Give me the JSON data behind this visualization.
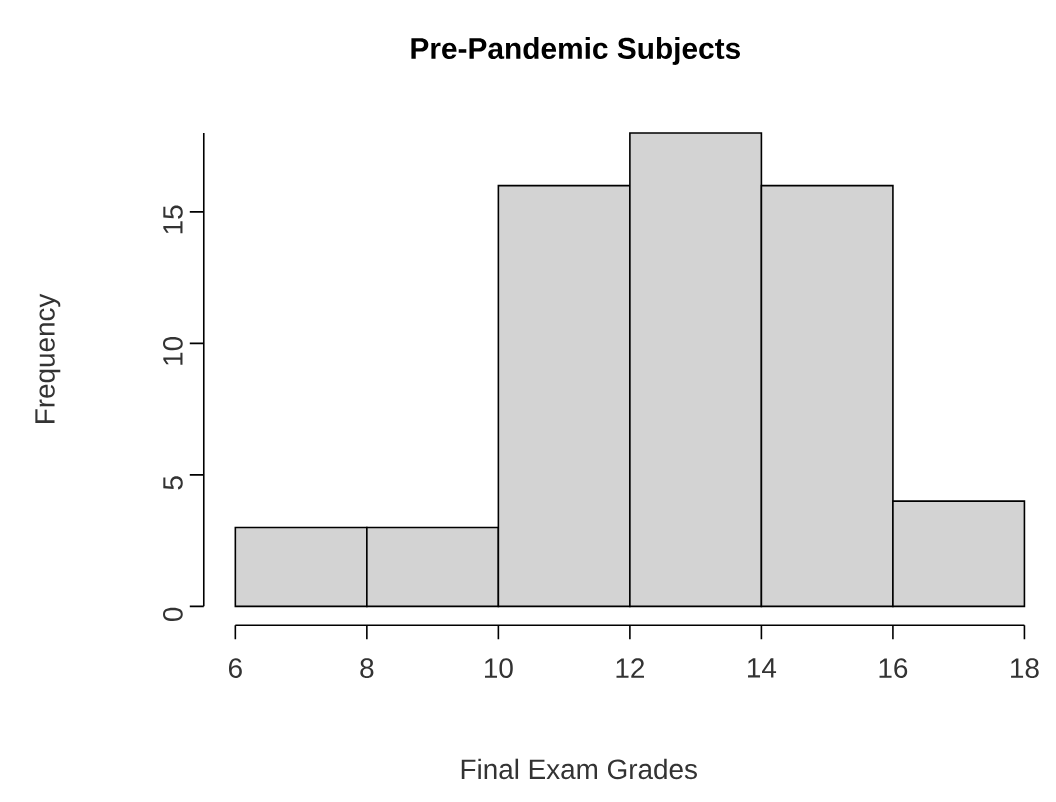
{
  "chart_data": {
    "type": "histogram",
    "title": "Pre-Pandemic Subjects",
    "xlabel": "Final Exam Grades",
    "ylabel": "Frequency",
    "bins": [
      6,
      8,
      10,
      12,
      14,
      16,
      18
    ],
    "values": [
      3,
      3,
      16,
      18,
      16,
      4
    ],
    "color": "#d3d3d3",
    "xlim": [
      6,
      18
    ],
    "ylim": [
      0,
      18
    ],
    "xticks": [
      6,
      8,
      10,
      12,
      14,
      16,
      18
    ],
    "yticks": [
      0,
      5,
      10,
      15
    ],
    "grid": false
  }
}
